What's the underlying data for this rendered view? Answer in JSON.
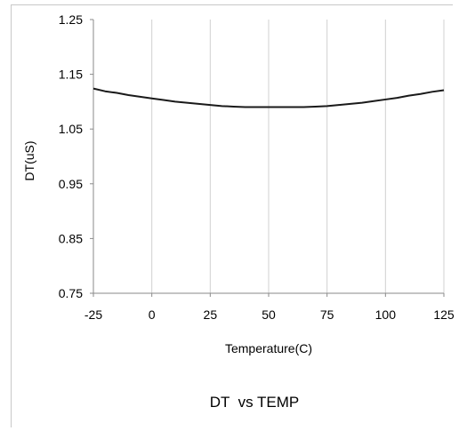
{
  "chart_data": {
    "type": "line",
    "title": "DT  vs TEMP",
    "xlabel": "Temperature(C)",
    "ylabel": "DT(uS)",
    "xlim": [
      -25,
      125
    ],
    "ylim": [
      0.75,
      1.25
    ],
    "x_ticks": [
      "-25",
      "0",
      "25",
      "50",
      "75",
      "100",
      "125"
    ],
    "y_ticks": [
      "1.25",
      "1.15",
      "1.05",
      "0.95",
      "0.85",
      "0.75"
    ],
    "grid": "vertical",
    "legend": "none",
    "series": [
      {
        "color": "#1a1a1a",
        "x": [
          -25,
          -20,
          -15,
          -10,
          -5,
          0,
          5,
          10,
          15,
          20,
          25,
          30,
          35,
          40,
          45,
          50,
          55,
          60,
          65,
          70,
          75,
          80,
          85,
          90,
          95,
          100,
          105,
          110,
          115,
          120,
          125
        ],
        "y": [
          1.124,
          1.119,
          1.116,
          1.112,
          1.109,
          1.106,
          1.103,
          1.1,
          1.098,
          1.096,
          1.094,
          1.092,
          1.091,
          1.09,
          1.09,
          1.09,
          1.09,
          1.09,
          1.09,
          1.091,
          1.092,
          1.094,
          1.096,
          1.098,
          1.101,
          1.104,
          1.107,
          1.111,
          1.114,
          1.118,
          1.121
        ]
      }
    ]
  }
}
